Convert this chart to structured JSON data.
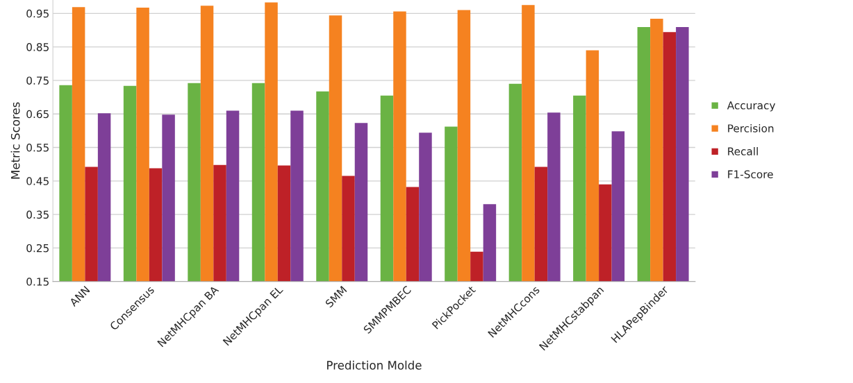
{
  "chart_data": {
    "type": "bar",
    "xlabel": "Prediction Molde",
    "ylabel": "Metric Scores",
    "categories": [
      "ANN",
      "Consensus",
      "NetMHCpan BA",
      "NetMHCpan EL",
      "SMM",
      "SMMPMBEC",
      "PickPocket",
      "NetMHCcons",
      "NetMHCstabpan",
      "HLAPepBinder"
    ],
    "series": [
      {
        "name": "Accuracy",
        "color": "#6ab344",
        "values": [
          0.736,
          0.734,
          0.742,
          0.742,
          0.717,
          0.705,
          0.612,
          0.74,
          0.705,
          0.909
        ]
      },
      {
        "name": "Percision",
        "color": "#f58220",
        "values": [
          0.969,
          0.967,
          0.973,
          0.983,
          0.944,
          0.956,
          0.96,
          0.975,
          0.84,
          0.934
        ]
      },
      {
        "name": "Recall",
        "color": "#be2127",
        "values": [
          0.492,
          0.488,
          0.498,
          0.496,
          0.465,
          0.432,
          0.239,
          0.492,
          0.44,
          0.894
        ]
      },
      {
        "name": "F1-Score",
        "color": "#7e3f98",
        "values": [
          0.652,
          0.648,
          0.66,
          0.66,
          0.623,
          0.594,
          0.381,
          0.654,
          0.598,
          0.909
        ]
      }
    ],
    "ylim": [
      0.15,
      0.99
    ],
    "yticks": [
      0.15,
      0.25,
      0.35,
      0.45,
      0.55,
      0.65,
      0.75,
      0.85,
      0.95
    ],
    "grid": "y",
    "legend": "right"
  }
}
